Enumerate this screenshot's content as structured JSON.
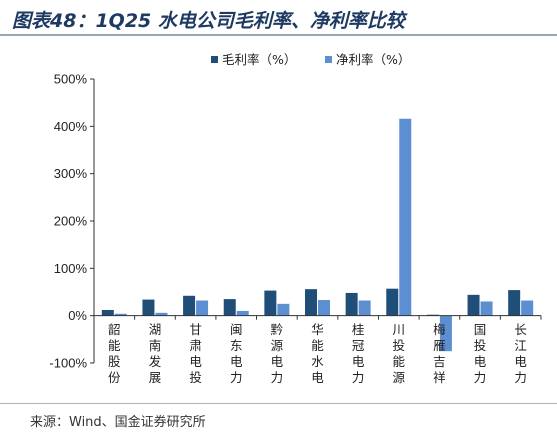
{
  "title": "图表48：1Q25 水电公司毛利率、净利率比较",
  "source": "来源：Wind、国金证券研究所",
  "chart_data": {
    "type": "bar",
    "categories": [
      "韶能股份",
      "湖南发展",
      "甘肃电投",
      "闽东电力",
      "黔源电力",
      "华能水电",
      "桂冠电力",
      "川投能源",
      "梅雁吉祥",
      "国投电力",
      "长江电力"
    ],
    "series": [
      {
        "name": "毛利率（%）",
        "color": "#1f4e79",
        "values": [
          12,
          34,
          42,
          35,
          53,
          56,
          48,
          57,
          2,
          44,
          54
        ]
      },
      {
        "name": "净利率（%）",
        "color": "#5b8fd1",
        "values": [
          4,
          6,
          32,
          10,
          25,
          33,
          32,
          416,
          -75,
          30,
          32
        ]
      }
    ],
    "ylim": [
      -100,
      500
    ],
    "yticks": [
      "-100%",
      "0%",
      "100%",
      "200%",
      "300%",
      "400%",
      "500%"
    ],
    "legend_position": "top",
    "grid": false
  }
}
